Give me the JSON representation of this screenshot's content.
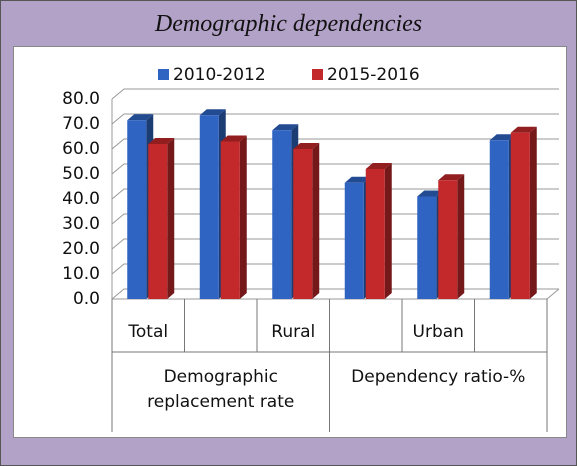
{
  "chart_data": {
    "type": "bar3d",
    "title": "Demographic dependencies",
    "categories": [
      "Total",
      null,
      "Rural",
      null,
      "Urban",
      null
    ],
    "groups": [
      "Demographic replacement rate",
      "Dependency ratio-%"
    ],
    "series": [
      {
        "name": "2010-2012",
        "color": "#2f64c2",
        "values": [
          71.5,
          73.5,
          67.5,
          46.5,
          41,
          63.5
        ]
      },
      {
        "name": "2015-2016",
        "color": "#c3282b",
        "values": [
          62,
          63,
          60,
          52,
          47.5,
          66.5
        ]
      }
    ],
    "ylim": [
      0,
      80
    ],
    "yticks": [
      {
        "value": 0,
        "label": "0.0"
      },
      {
        "value": 10,
        "label": "10.0"
      },
      {
        "value": 20,
        "label": "20.0"
      },
      {
        "value": 30,
        "label": "30.0"
      },
      {
        "value": 40,
        "label": "40.0"
      },
      {
        "value": 50,
        "label": "50.0"
      },
      {
        "value": 60,
        "label": "60.0"
      },
      {
        "value": 70,
        "label": "70.0"
      },
      {
        "value": 80,
        "label": "80.0"
      }
    ],
    "grid": true,
    "legend": "top"
  }
}
